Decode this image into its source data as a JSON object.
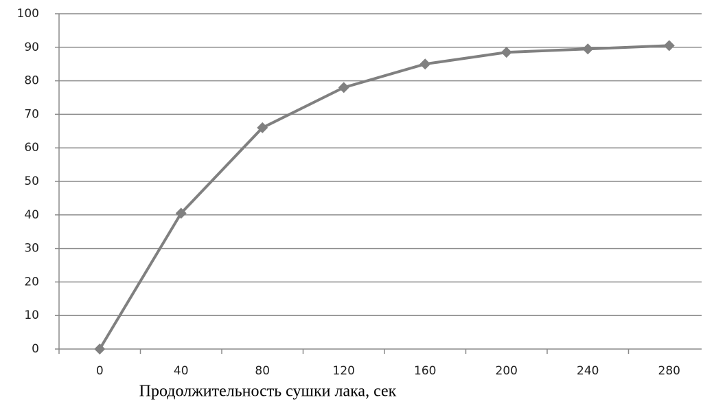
{
  "chart_data": {
    "type": "line",
    "x_label": "Продолжительность сушки лака, сек",
    "categories": [
      "0",
      "40",
      "80",
      "120",
      "160",
      "200",
      "240",
      "280"
    ],
    "values": [
      0,
      40.5,
      66,
      78,
      85,
      88.5,
      89.5,
      90.5
    ],
    "color": "#808080",
    "ylim": [
      0,
      100
    ],
    "yticks": [
      0,
      10,
      20,
      30,
      40,
      50,
      60,
      70,
      80,
      90,
      100
    ],
    "grid": true
  }
}
